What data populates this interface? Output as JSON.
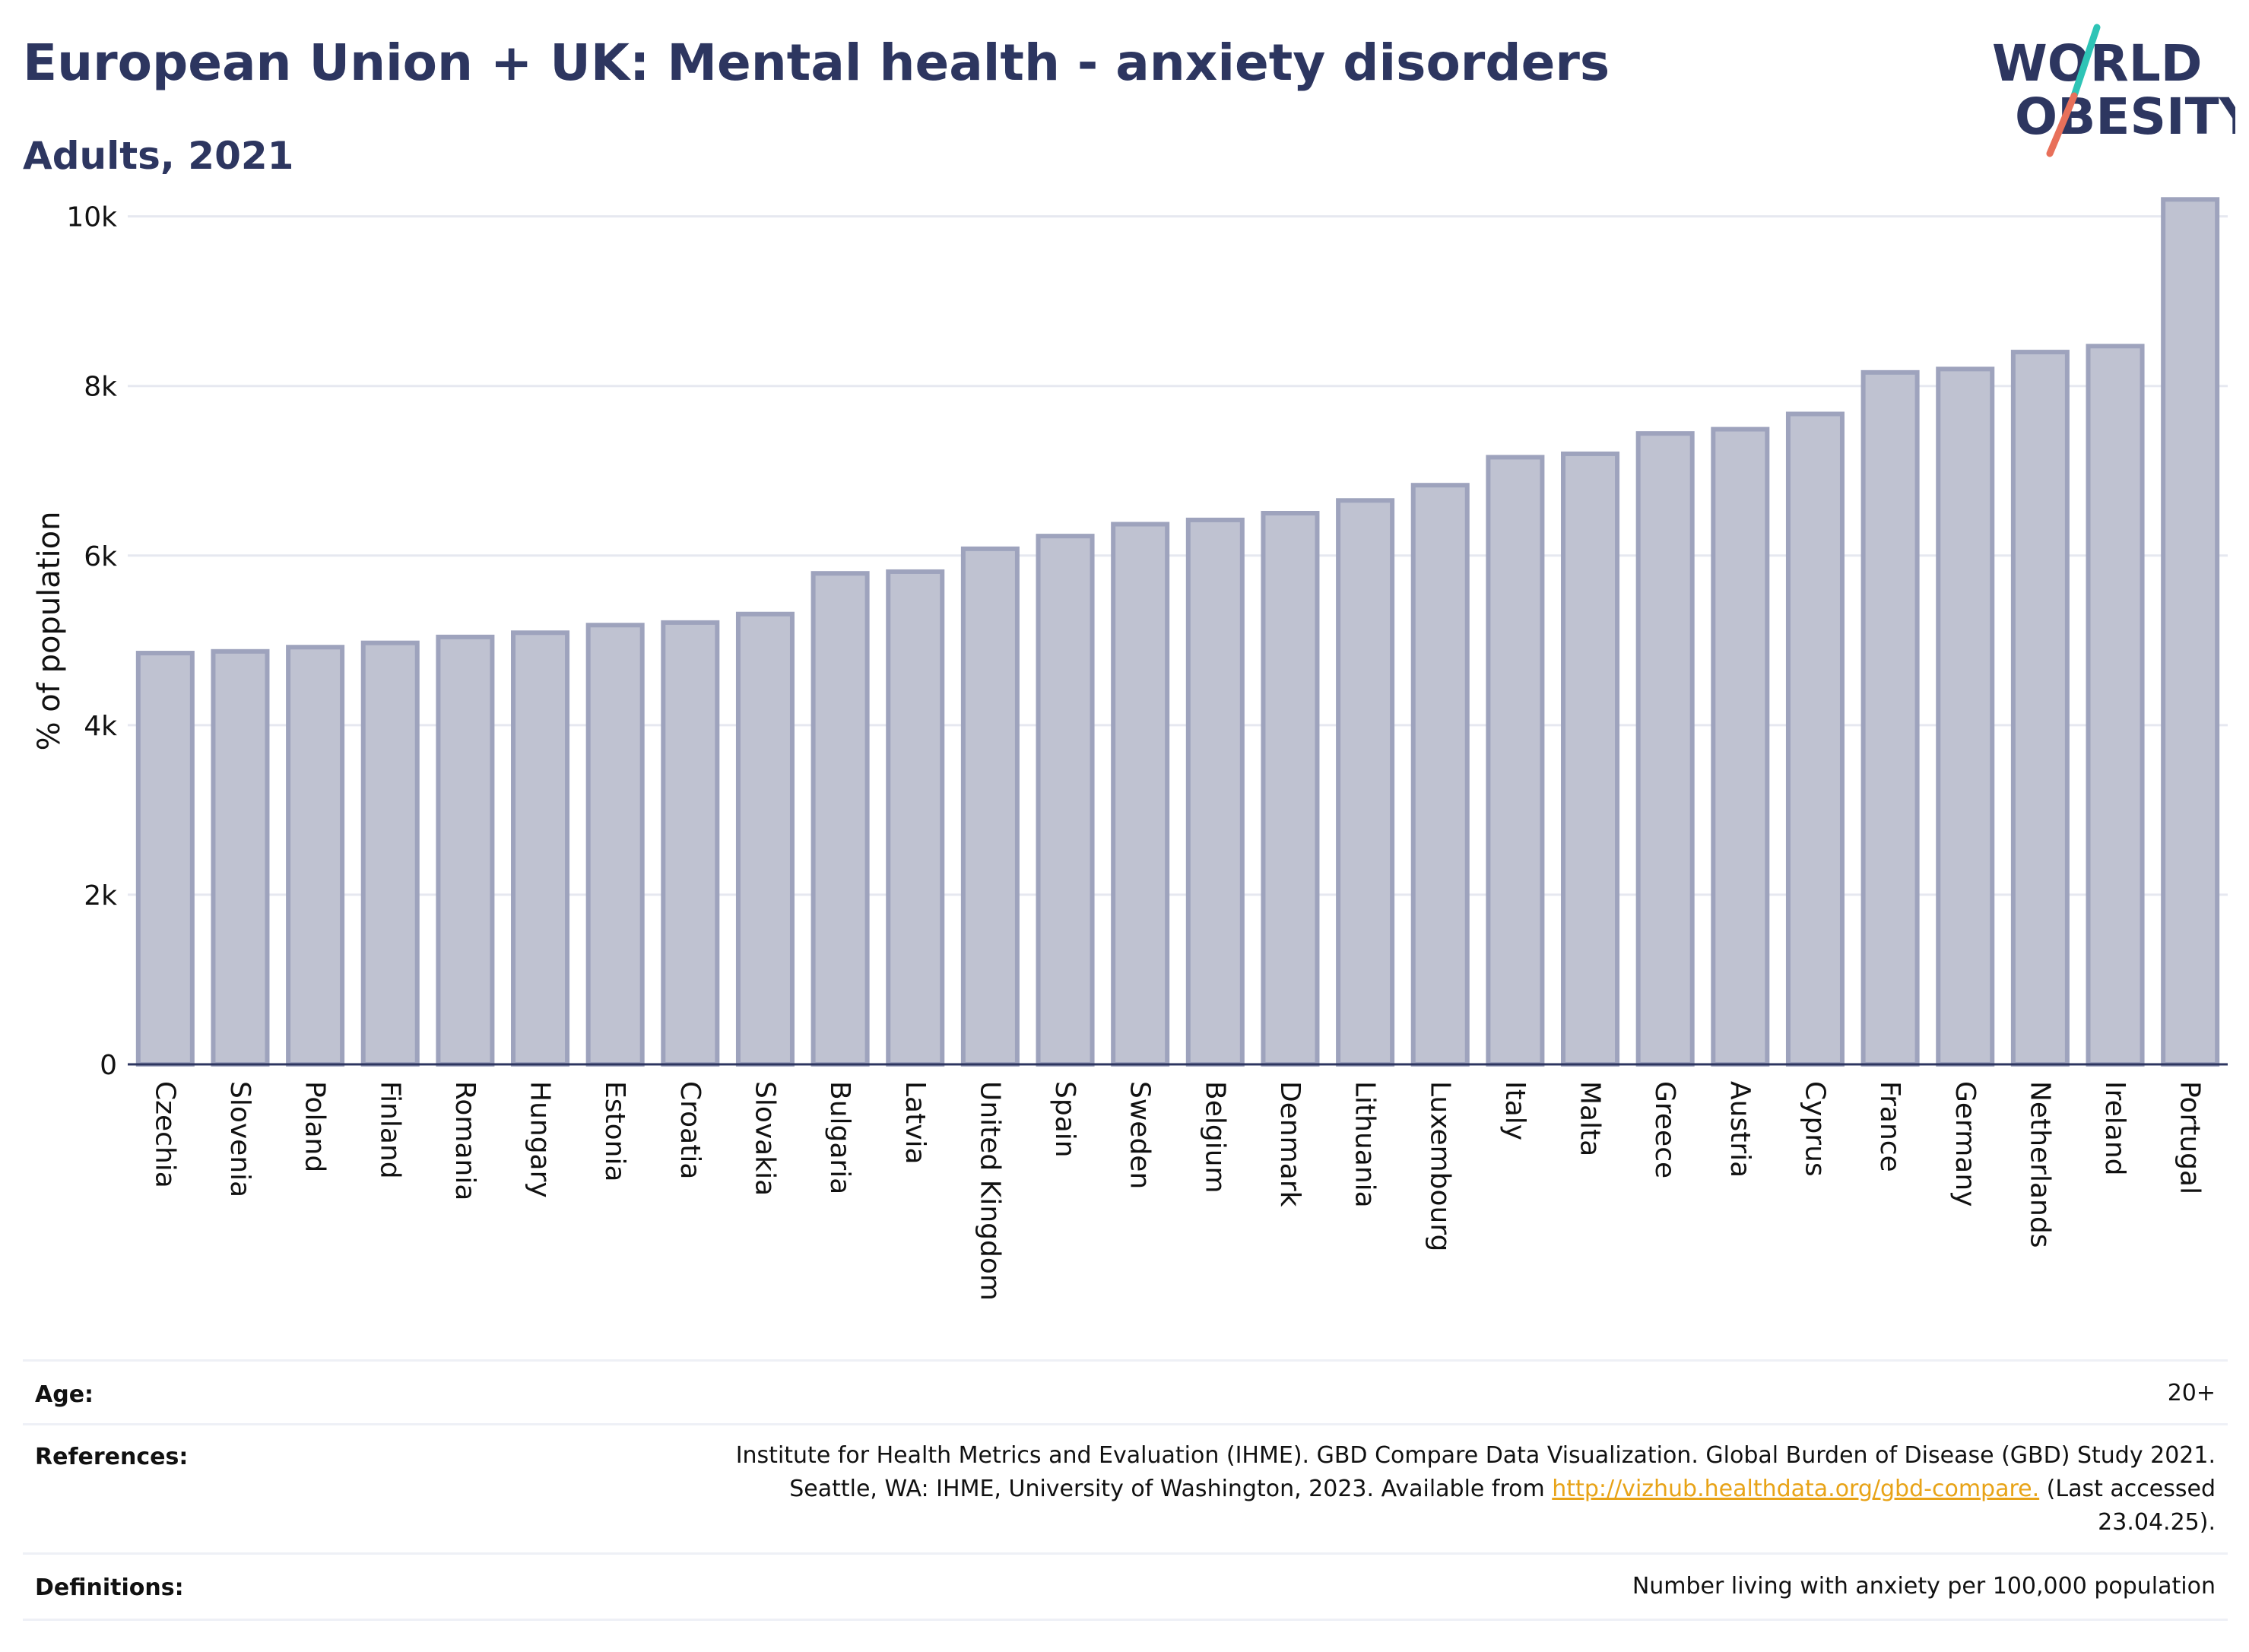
{
  "header": {
    "title": "European Union + UK: Mental health - anxiety disorders",
    "subtitle": "Adults, 2021"
  },
  "logo": {
    "line1": "WORLD",
    "line2": "OBESITY",
    "icon": "world-obesity-logo"
  },
  "chart_data": {
    "type": "bar",
    "ylabel": "% of population",
    "xlabel": "",
    "ylim": [
      0,
      10400
    ],
    "yticks": [
      0,
      2000,
      4000,
      6000,
      8000,
      10000
    ],
    "ytick_labels": [
      "0",
      "2k",
      "4k",
      "6k",
      "8k",
      "10k"
    ],
    "grid": true,
    "bar_color": "#bfc2d1",
    "bar_edge_color": "#9ea3bd",
    "categories": [
      "Czechia",
      "Slovenia",
      "Poland",
      "Finland",
      "Romania",
      "Hungary",
      "Estonia",
      "Croatia",
      "Slovakia",
      "Bulgaria",
      "Latvia",
      "United Kingdom",
      "Spain",
      "Sweden",
      "Belgium",
      "Denmark",
      "Lithuania",
      "Luxembourg",
      "Italy",
      "Malta",
      "Greece",
      "Austria",
      "Cyprus",
      "France",
      "Germany",
      "Netherlands",
      "Ireland",
      "Portugal"
    ],
    "values": [
      4850,
      4870,
      4920,
      4970,
      5040,
      5090,
      5180,
      5210,
      5310,
      5790,
      5810,
      6080,
      6230,
      6370,
      6420,
      6500,
      6650,
      6830,
      7160,
      7200,
      7440,
      7490,
      7670,
      8160,
      8200,
      8400,
      8470,
      10200
    ]
  },
  "meta": {
    "age_label": "Age:",
    "age_value": "20+",
    "references_label": "References:",
    "references_line1": "Institute for Health Metrics and Evaluation (IHME). GBD Compare Data Visualization. Global Burden of Disease (GBD) Study 2021.",
    "references_line2_pre": "Seattle, WA: IHME, University of Washington, 2023. Available from ",
    "references_link": "http://vizhub.healthdata.org/gbd-compare.",
    "references_line2_post": " (Last accessed",
    "references_line3": "23.04.25).",
    "definitions_label": "Definitions:",
    "definitions_value": "Number living with anxiety per 100,000 population"
  },
  "colors": {
    "brand_navy": "#2d3660",
    "logo_teal": "#2ec4b6",
    "logo_coral": "#e8705a",
    "link": "#e8a317"
  }
}
